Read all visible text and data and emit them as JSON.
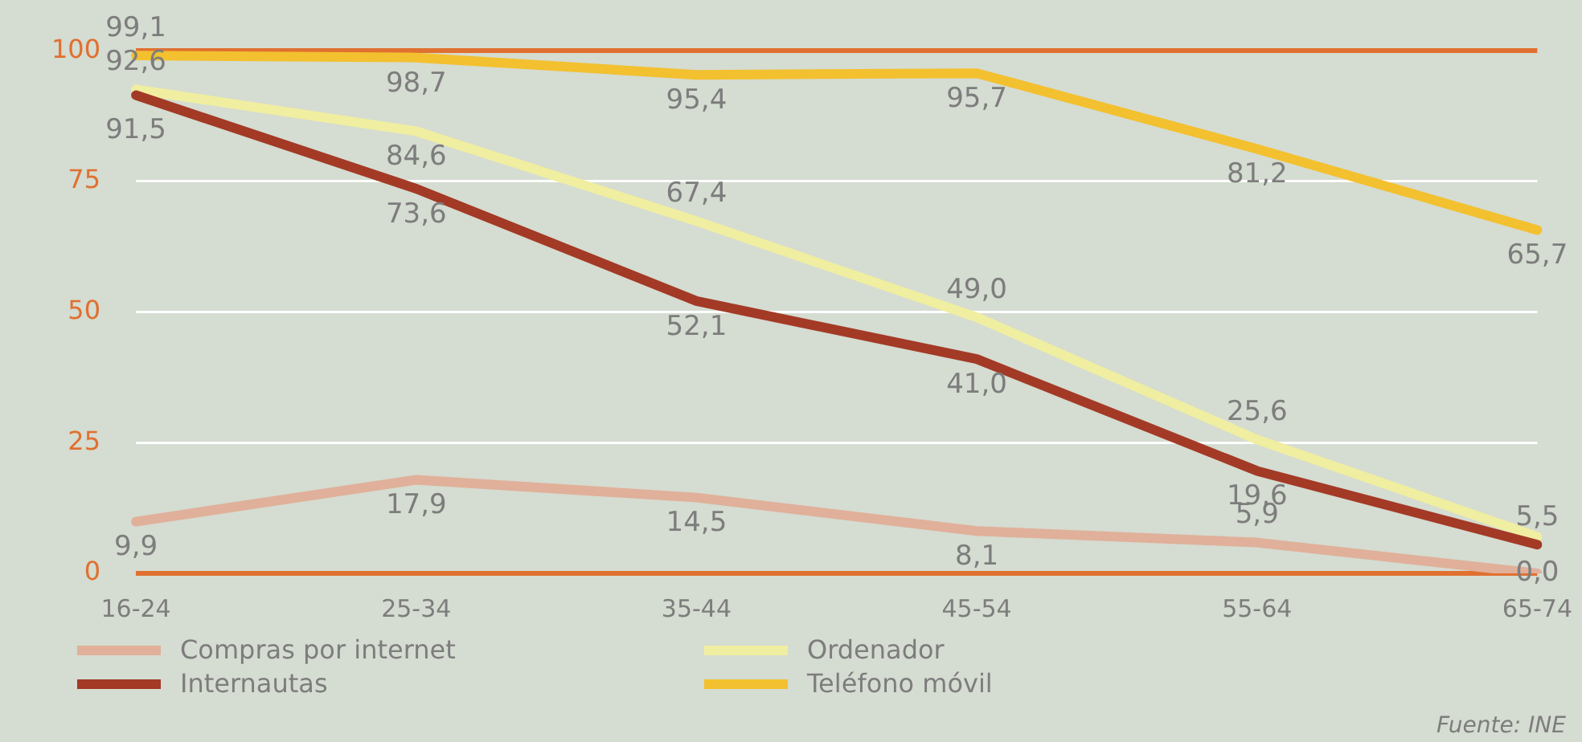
{
  "chart_data": {
    "type": "line",
    "categories": [
      "16-24",
      "25-34",
      "35-44",
      "45-54",
      "55-64",
      "65-74"
    ],
    "ylim": [
      0,
      100
    ],
    "yticks": [
      0,
      25,
      50,
      75,
      100
    ],
    "grid": "y",
    "legend": "bottom",
    "marker": "none",
    "line_style": "solid",
    "annotations": [
      "Fuente: INE"
    ],
    "series": [
      {
        "name": "Compras por internet",
        "color": "#e0b09a",
        "values": [
          9.9,
          17.9,
          14.5,
          8.1,
          5.9,
          0.0
        ],
        "value_labels": [
          "9,9",
          "17,9",
          "14,5",
          "8,1",
          "5,9",
          "0,0"
        ]
      },
      {
        "name": "Internautas",
        "color": "#a33a26",
        "values": [
          91.5,
          73.6,
          52.1,
          41.0,
          19.6,
          5.5
        ],
        "value_labels": [
          "91,5",
          "73,6",
          "52,1",
          "41,0",
          "19,6",
          "5,5"
        ]
      },
      {
        "name": "Ordenador",
        "color": "#f0eea0",
        "values": [
          92.6,
          84.6,
          67.4,
          49.0,
          25.6,
          7
        ],
        "value_labels": [
          "92,6",
          "84,6",
          "67,4",
          "49,0",
          "25,6",
          null
        ]
      },
      {
        "name": "Teléfono móvil",
        "color": "#f3c02f",
        "values": [
          99.1,
          98.7,
          95.4,
          95.7,
          81.2,
          65.7
        ],
        "value_labels": [
          "99,1",
          "98,7",
          "95,4",
          "95,7",
          "81,2",
          "65,7"
        ]
      }
    ]
  }
}
